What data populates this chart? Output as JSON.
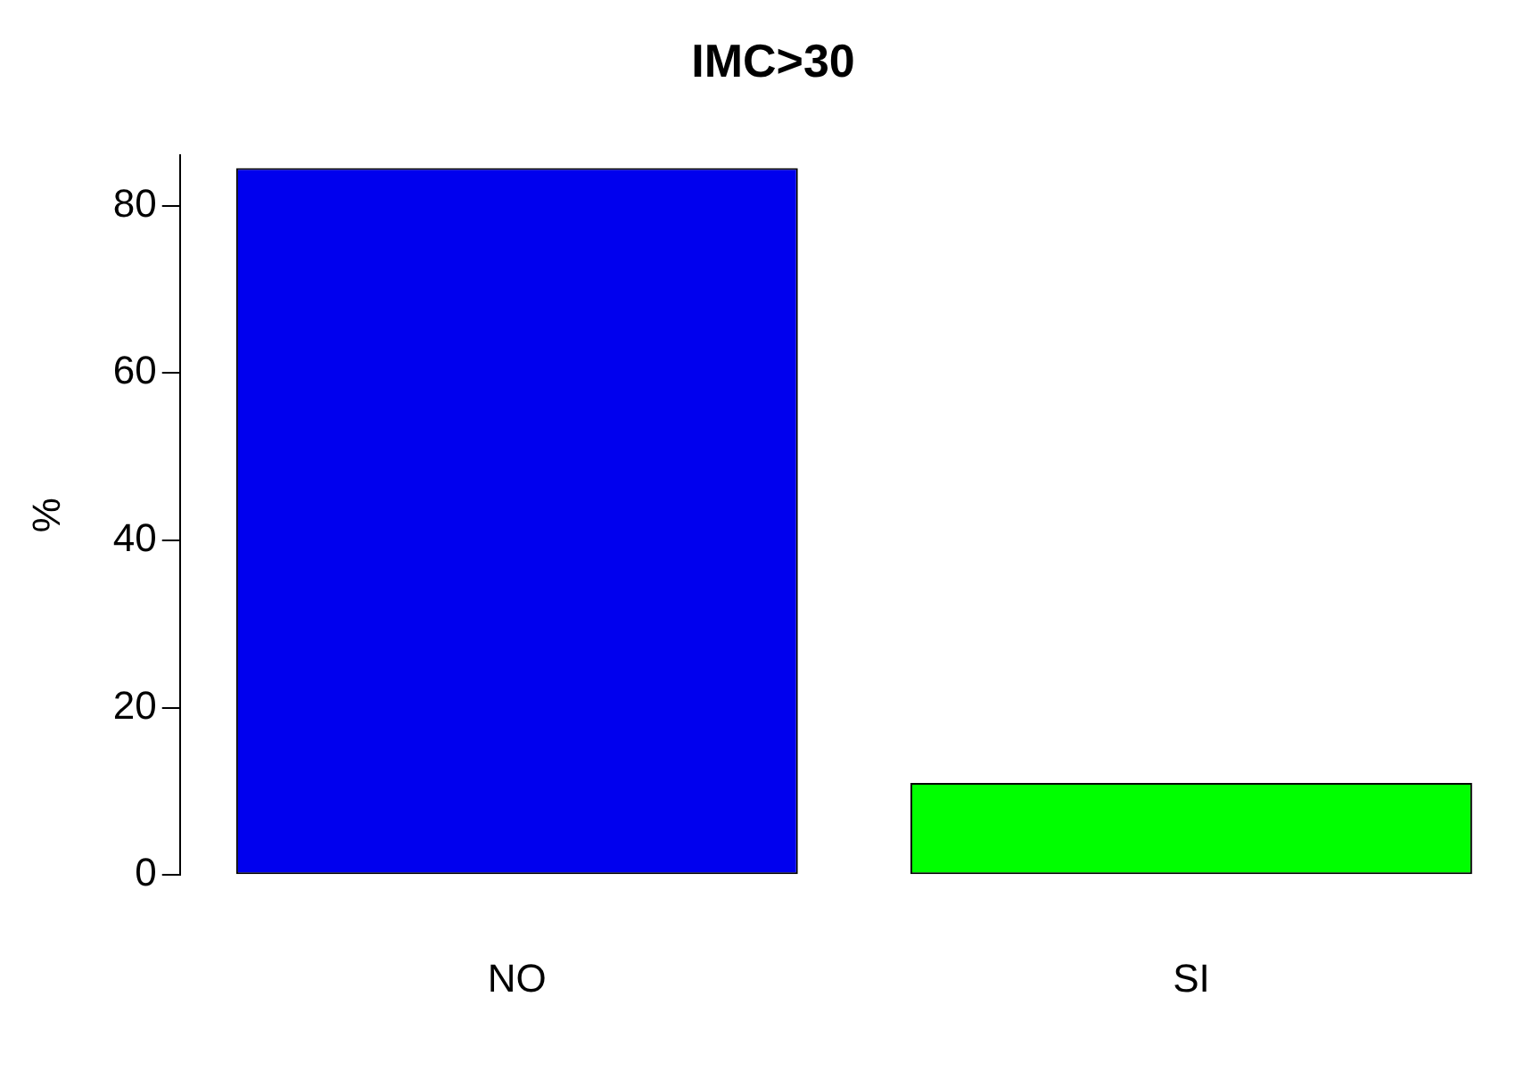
{
  "chart_data": {
    "type": "bar",
    "title": "IMC>30",
    "ylabel": "%",
    "categories": [
      "NO",
      "SI"
    ],
    "values": [
      84.5,
      11
    ],
    "colors": [
      "#0000ee",
      "#00ff00"
    ],
    "ylim": [
      0,
      86
    ],
    "yticks": [
      0,
      20,
      40,
      60,
      80
    ],
    "grid": false,
    "legend": false
  }
}
